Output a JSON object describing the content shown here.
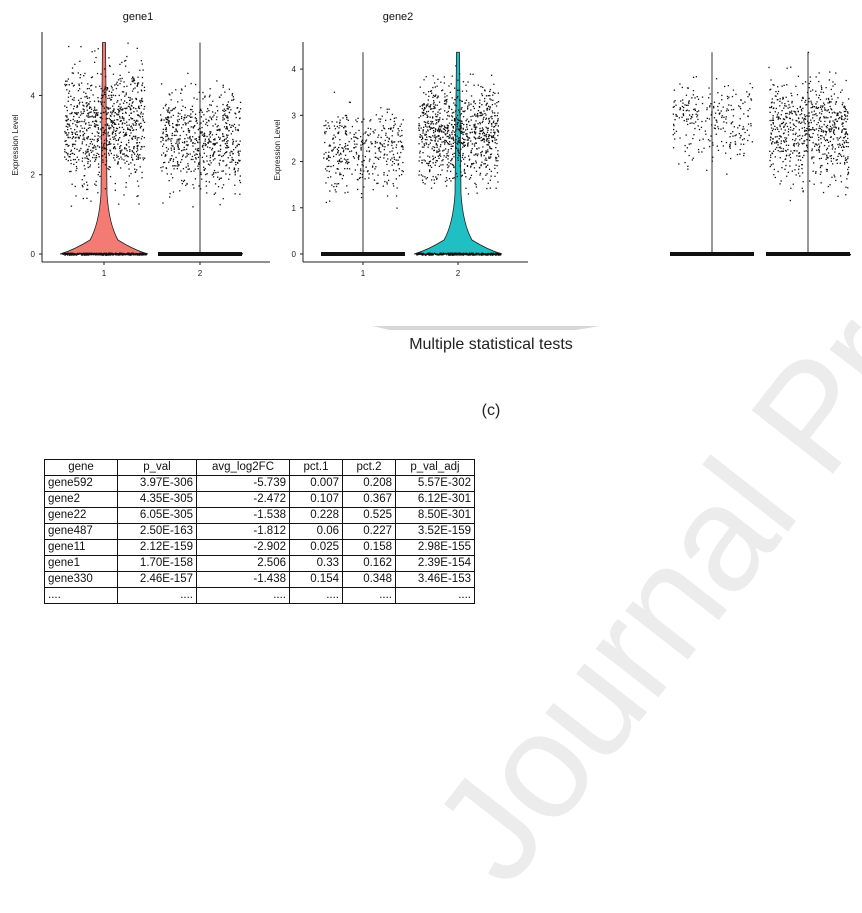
{
  "colors": {
    "cluster1_fill": "#f47b73",
    "cluster2_fill": "#1fbfc3",
    "point": "#111111",
    "axis": "#222222"
  },
  "arrow_text": "Multiple statistical tests",
  "panel_label": "(c)",
  "watermark": "Journal Pre-proof",
  "chart_data": [
    {
      "type": "violin",
      "title": "gene1",
      "ylabel": "Expression Level",
      "xlabel": "",
      "categories": [
        "1",
        "2"
      ],
      "ylim": [
        0,
        5.5
      ],
      "yticks": [
        0,
        2,
        4
      ],
      "series": [
        {
          "cluster": "1",
          "fill": "cluster1_fill",
          "jitter_range": [
            1.1,
            5.4
          ],
          "zero_fraction": 0.45,
          "n_points": 900
        },
        {
          "cluster": "2",
          "fill": null,
          "jitter_range": [
            1.1,
            4.8
          ],
          "zero_fraction": 0.1,
          "n_points": 650
        }
      ]
    },
    {
      "type": "violin",
      "title": "gene2",
      "ylabel": "Expression Level",
      "xlabel": "",
      "categories": [
        "1",
        "2"
      ],
      "ylim": [
        0,
        4.5
      ],
      "yticks": [
        0,
        1,
        2,
        3,
        4
      ],
      "series": [
        {
          "cluster": "1",
          "fill": null,
          "jitter_range": [
            0.9,
            3.6
          ],
          "zero_fraction": 0.1,
          "n_points": 400
        },
        {
          "cluster": "2",
          "fill": "cluster2_fill",
          "jitter_range": [
            1.1,
            4.2
          ],
          "zero_fraction": 0.4,
          "n_points": 900
        }
      ]
    },
    {
      "type": "violin",
      "title": "",
      "ylabel": "",
      "xlabel": "",
      "categories": [
        "",
        ""
      ],
      "ylim": [
        0,
        4.5
      ],
      "yticks": [],
      "series": [
        {
          "cluster": "1",
          "fill": null,
          "jitter_range": [
            1.6,
            4.2
          ],
          "zero_fraction": 0.2,
          "n_points": 260
        },
        {
          "cluster": "2",
          "fill": null,
          "jitter_range": [
            1.1,
            4.4
          ],
          "zero_fraction": 0.2,
          "n_points": 700
        }
      ]
    }
  ],
  "table": {
    "headers": [
      "gene",
      "p_val",
      "avg_log2FC",
      "pct.1",
      "pct.2",
      "p_val_adj"
    ],
    "rows": [
      [
        "gene592",
        "3.97E-306",
        "-5.739",
        "0.007",
        "0.208",
        "5.57E-302"
      ],
      [
        "gene2",
        "4.35E-305",
        "-2.472",
        "0.107",
        "0.367",
        "6.12E-301"
      ],
      [
        "gene22",
        "6.05E-305",
        "-1.538",
        "0.228",
        "0.525",
        "8.50E-301"
      ],
      [
        "gene487",
        "2.50E-163",
        "-1.812",
        "0.06",
        "0.227",
        "3.52E-159"
      ],
      [
        "gene11",
        "2.12E-159",
        "-2.902",
        "0.025",
        "0.158",
        "2.98E-155"
      ],
      [
        "gene1",
        "1.70E-158",
        "2.506",
        "0.33",
        "0.162",
        "2.39E-154"
      ],
      [
        "gene330",
        "2.46E-157",
        "-1.438",
        "0.154",
        "0.348",
        "3.46E-153"
      ],
      [
        "....",
        "....",
        "....",
        "....",
        "....",
        "...."
      ]
    ]
  }
}
